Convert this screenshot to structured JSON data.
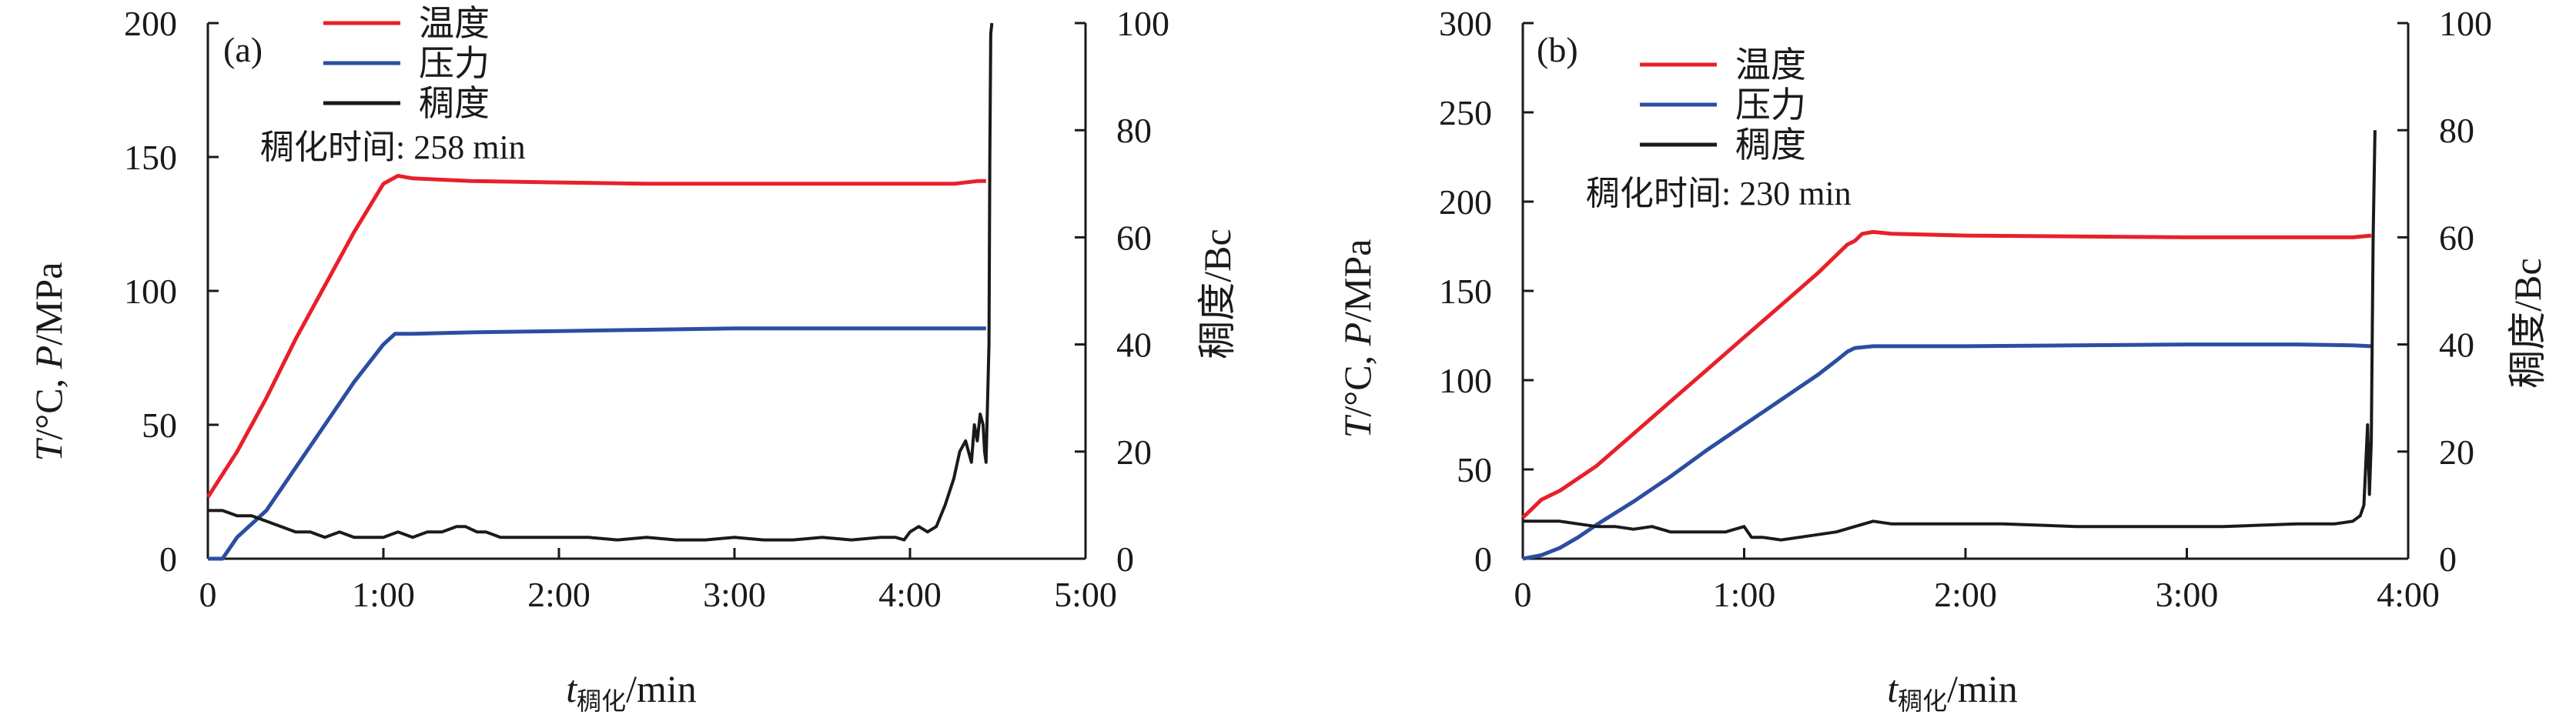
{
  "figure": {
    "panels": [
      {
        "label": "(a)",
        "annotation": "稠化时间: 258 min",
        "left_axis_label": {
          "italic1": "T",
          "text1": "/°C, ",
          "italic2": "P",
          "text2": "/MPa"
        },
        "right_axis_label": "稠度/Bc",
        "x_axis_label": {
          "italic": "t",
          "sub": "稠化",
          "text": "/min"
        }
      },
      {
        "label": "(b)",
        "annotation": "稠化时间: 230 min",
        "left_axis_label": {
          "italic1": "T",
          "text1": "/°C, ",
          "italic2": "P",
          "text2": "/MPa"
        },
        "right_axis_label": "稠度/Bc",
        "x_axis_label": {
          "italic": "t",
          "sub": "稠化",
          "text": "/min"
        }
      }
    ]
  },
  "chart_data": [
    {
      "type": "line",
      "panel": "(a)",
      "x_unit": "min",
      "xlim": [
        0,
        300
      ],
      "xticks": [
        0,
        60,
        120,
        180,
        240,
        300
      ],
      "xtick_labels": [
        "0",
        "1:00",
        "2:00",
        "3:00",
        "4:00",
        "5:00"
      ],
      "ylim_left": [
        0,
        200
      ],
      "yticks_left": [
        0,
        50,
        100,
        150,
        200
      ],
      "ylim_right": [
        0,
        100
      ],
      "yticks_right": [
        0,
        20,
        40,
        60,
        80,
        100
      ],
      "grid": false,
      "legend_position": "top-left",
      "series": [
        {
          "name": "温度",
          "color": "#e8202a",
          "axis": "left",
          "x": [
            0,
            10,
            20,
            30,
            40,
            50,
            60,
            65,
            70,
            90,
            120,
            150,
            180,
            210,
            240,
            255,
            263,
            266
          ],
          "y": [
            23,
            40,
            60,
            82,
            102,
            122,
            140,
            143,
            142,
            141,
            140.5,
            140,
            140,
            140,
            140,
            140,
            141,
            141
          ]
        },
        {
          "name": "压力",
          "color": "#2b4ea2",
          "axis": "left",
          "x": [
            0,
            5,
            10,
            20,
            30,
            40,
            50,
            60,
            64,
            70,
            90,
            120,
            150,
            180,
            210,
            240,
            255,
            266
          ],
          "y": [
            0,
            0,
            8,
            18,
            34,
            50,
            66,
            80,
            84,
            84,
            84.5,
            85,
            85.5,
            86,
            86,
            86,
            86,
            86
          ]
        },
        {
          "name": "稠度",
          "color": "#1a1a1a",
          "axis": "right",
          "x": [
            0,
            5,
            10,
            15,
            20,
            25,
            30,
            35,
            40,
            45,
            50,
            55,
            60,
            65,
            70,
            75,
            80,
            85,
            88,
            92,
            95,
            100,
            105,
            110,
            115,
            120,
            130,
            140,
            150,
            160,
            170,
            180,
            190,
            200,
            210,
            220,
            230,
            235,
            238,
            240,
            243,
            246,
            249,
            252,
            255,
            257,
            259,
            261,
            262,
            263,
            264,
            265,
            265.5,
            266,
            266.5,
            267,
            267.3,
            267.6,
            268
          ],
          "y": [
            9,
            9,
            8,
            8,
            7,
            6,
            5,
            5,
            4,
            5,
            4,
            4,
            4,
            5,
            4,
            5,
            5,
            6,
            6,
            5,
            5,
            4,
            4,
            4,
            4,
            4,
            4,
            3.5,
            4,
            3.5,
            3.5,
            4,
            3.5,
            3.5,
            4,
            3.5,
            4,
            4,
            3.5,
            5,
            6,
            5,
            6,
            10,
            15,
            20,
            22,
            18,
            25,
            22,
            27,
            25,
            20,
            18,
            29,
            40,
            75,
            98,
            100
          ]
        }
      ]
    },
    {
      "type": "line",
      "panel": "(b)",
      "x_unit": "min",
      "xlim": [
        0,
        240
      ],
      "xticks": [
        0,
        60,
        120,
        180,
        240
      ],
      "xtick_labels": [
        "0",
        "1:00",
        "2:00",
        "3:00",
        "4:00"
      ],
      "ylim_left": [
        0,
        300
      ],
      "yticks_left": [
        0,
        50,
        100,
        150,
        200,
        250,
        300
      ],
      "ylim_right": [
        0,
        100
      ],
      "yticks_right": [
        0,
        20,
        40,
        60,
        80,
        100
      ],
      "grid": false,
      "legend_position": "top-left",
      "series": [
        {
          "name": "温度",
          "color": "#e8202a",
          "axis": "left",
          "x": [
            0,
            2,
            5,
            10,
            20,
            30,
            40,
            50,
            60,
            70,
            80,
            85,
            88,
            90,
            92,
            95,
            100,
            120,
            150,
            180,
            210,
            225,
            230
          ],
          "y": [
            23,
            27,
            33,
            38,
            52,
            70,
            88,
            106,
            124,
            142,
            160,
            170,
            176,
            178,
            182,
            183,
            182,
            181,
            180.5,
            180,
            180,
            180,
            181
          ]
        },
        {
          "name": "压力",
          "color": "#2b4ea2",
          "axis": "left",
          "x": [
            0,
            5,
            10,
            15,
            20,
            30,
            40,
            50,
            60,
            70,
            80,
            85,
            88,
            90,
            95,
            120,
            150,
            180,
            210,
            225,
            230
          ],
          "y": [
            0,
            2,
            6,
            12,
            19,
            32,
            46,
            61,
            75,
            89,
            103,
            111,
            116,
            118,
            119,
            119,
            119.5,
            120,
            120,
            119.5,
            119
          ]
        },
        {
          "name": "稠度",
          "color": "#1a1a1a",
          "axis": "right",
          "x": [
            0,
            5,
            10,
            15,
            20,
            25,
            30,
            35,
            40,
            45,
            50,
            55,
            60,
            62,
            65,
            70,
            75,
            80,
            85,
            90,
            95,
            100,
            110,
            130,
            150,
            170,
            190,
            210,
            220,
            225,
            227,
            228,
            229,
            229.5,
            230,
            230.5,
            231
          ],
          "y": [
            7,
            7,
            7,
            6.5,
            6,
            6,
            5.5,
            6,
            5,
            5,
            5,
            5,
            6,
            4,
            4,
            3.5,
            4,
            4.5,
            5,
            6,
            7,
            6.5,
            6.5,
            6.5,
            6,
            6,
            6,
            6.5,
            6.5,
            7,
            8,
            10,
            25,
            12,
            22,
            60,
            80
          ]
        }
      ]
    }
  ]
}
